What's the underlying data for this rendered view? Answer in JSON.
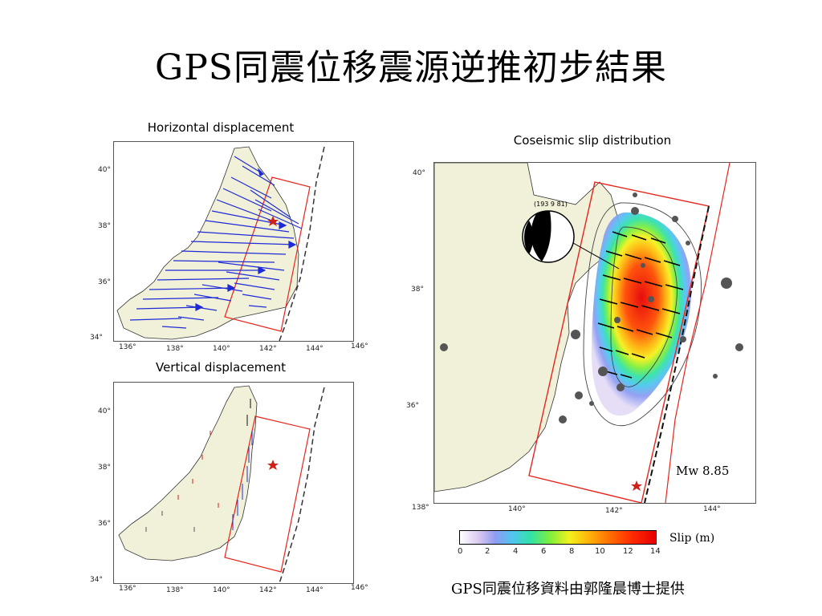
{
  "title": "GPS同震位移震源逆推初步結果",
  "panels": {
    "horizontal": {
      "caption": "Horizontal displacement",
      "lat_ticks": [
        "40°",
        "38°",
        "36°",
        "34°"
      ],
      "lon_ticks": [
        "136°",
        "138°",
        "140°",
        "142°",
        "144°",
        "146°"
      ]
    },
    "vertical": {
      "caption": "Vertical displacement",
      "lat_ticks": [
        "40°",
        "38°",
        "36°",
        "34°"
      ],
      "lon_ticks": [
        "136°",
        "138°",
        "140°",
        "142°",
        "144°",
        "146°"
      ]
    },
    "slip": {
      "caption": "Coseismic slip distribution",
      "lat_ticks": [
        "40°",
        "38°",
        "36°"
      ],
      "lon_ticks": [
        "138°",
        "140°",
        "142°",
        "144°"
      ],
      "mechanism_label": "(193 9 81)",
      "magnitude": "Mw 8.85"
    }
  },
  "colorbar": {
    "label": "Slip (m)",
    "ticks": [
      "0",
      "2",
      "4",
      "6",
      "8",
      "10",
      "12",
      "14"
    ]
  },
  "credit": "GPS同震位移資料由郭隆晨博士提供",
  "colors": {
    "land": "#f1f0d9",
    "fault_box": "#e8241c",
    "horizontal_arrows": "#1f2bd6",
    "epicenter": "#d0201a"
  }
}
